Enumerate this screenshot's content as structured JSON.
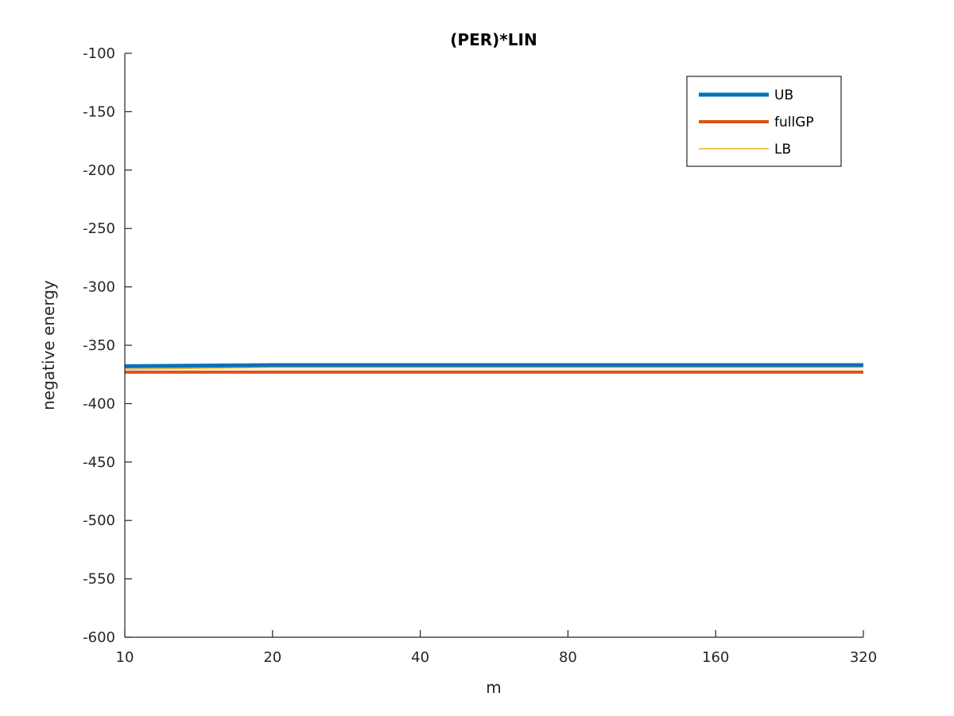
{
  "chart_data": {
    "type": "line",
    "title": "(PER)*LIN",
    "xlabel": "m",
    "ylabel": "negative energy",
    "x_scale": "log2",
    "x": [
      10,
      20,
      40,
      80,
      160,
      320
    ],
    "xticks": [
      "10",
      "20",
      "40",
      "80",
      "160",
      "320"
    ],
    "xlim": [
      10,
      320
    ],
    "ylim": [
      -600,
      -100
    ],
    "yticks": [
      "-100",
      "-150",
      "-200",
      "-250",
      "-300",
      "-350",
      "-400",
      "-450",
      "-500",
      "-550",
      "-600"
    ],
    "grid": false,
    "legend_position": "top-right",
    "series": [
      {
        "name": "UB",
        "values": [
          -368,
          -367,
          -367,
          -367,
          -367,
          -367
        ],
        "color": "#0072BD"
      },
      {
        "name": "fullGP",
        "values": [
          -373,
          -373,
          -373,
          -373,
          -373,
          -373
        ],
        "color": "#D95319"
      },
      {
        "name": "LB",
        "values": [
          -370.5,
          -369,
          -369,
          -369,
          -369,
          -369
        ],
        "color": "#EDB120"
      }
    ]
  }
}
